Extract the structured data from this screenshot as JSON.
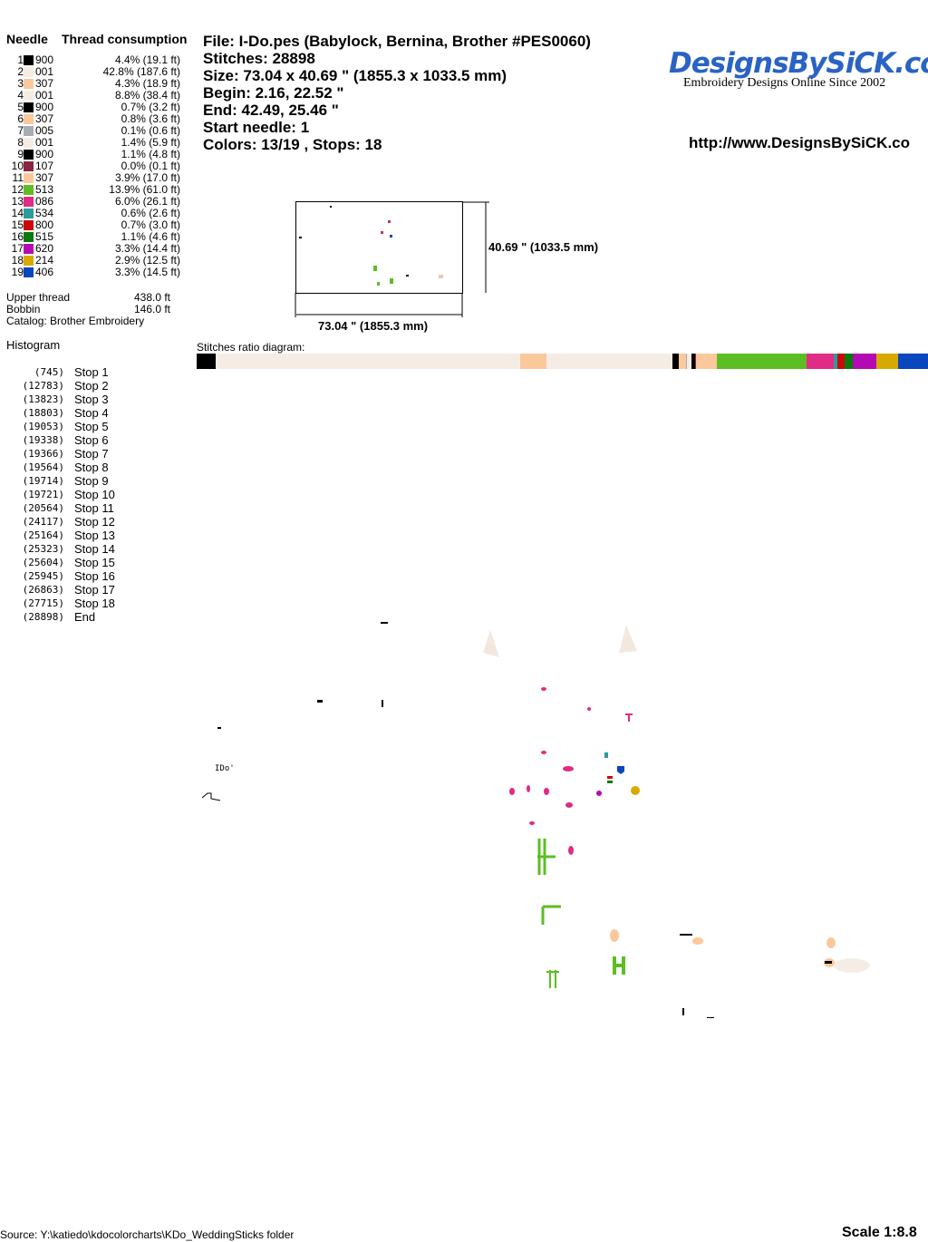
{
  "needle_table": {
    "header_needle": "Needle",
    "header_consumption": "Thread consumption",
    "rows": [
      {
        "n": "1",
        "color": "#000000",
        "code": "900",
        "consumption": "4.4% (19.1 ft)"
      },
      {
        "n": "2",
        "color": "#f5ede5",
        "code": "001",
        "consumption": "42.8% (187.6 ft)"
      },
      {
        "n": "3",
        "color": "#fbc89c",
        "code": "307",
        "consumption": "4.3% (18.9 ft)"
      },
      {
        "n": "4",
        "color": "#f5ede5",
        "code": "001",
        "consumption": "8.8% (38.4 ft)"
      },
      {
        "n": "5",
        "color": "#000000",
        "code": "900",
        "consumption": "0.7% (3.2 ft)"
      },
      {
        "n": "6",
        "color": "#fbc89c",
        "code": "307",
        "consumption": "0.8% (3.6 ft)"
      },
      {
        "n": "7",
        "color": "#a8adb4",
        "code": "005",
        "consumption": "0.1% (0.6 ft)"
      },
      {
        "n": "8",
        "color": "#f5ede5",
        "code": "001",
        "consumption": "1.4% (5.9 ft)"
      },
      {
        "n": "9",
        "color": "#000000",
        "code": "900",
        "consumption": "1.1% (4.8 ft)"
      },
      {
        "n": "10",
        "color": "#8c2444",
        "code": "107",
        "consumption": "0.0% (0.1 ft)"
      },
      {
        "n": "11",
        "color": "#fbc89c",
        "code": "307",
        "consumption": "3.9% (17.0 ft)"
      },
      {
        "n": "12",
        "color": "#5cbe23",
        "code": "513",
        "consumption": "13.9% (61.0 ft)"
      },
      {
        "n": "13",
        "color": "#e02c84",
        "code": "086",
        "consumption": "6.0% (26.1 ft)"
      },
      {
        "n": "14",
        "color": "#2a9c9c",
        "code": "534",
        "consumption": "0.6% (2.6 ft)"
      },
      {
        "n": "15",
        "color": "#c80a0a",
        "code": "800",
        "consumption": "0.7% (3.0 ft)"
      },
      {
        "n": "16",
        "color": "#0a7a0a",
        "code": "515",
        "consumption": "1.1% (4.6 ft)"
      },
      {
        "n": "17",
        "color": "#b40ab4",
        "code": "620",
        "consumption": "3.3% (14.4 ft)"
      },
      {
        "n": "18",
        "color": "#d8aa00",
        "code": "214",
        "consumption": "2.9% (12.5 ft)"
      },
      {
        "n": "19",
        "color": "#0a46be",
        "code": "406",
        "consumption": "3.3% (14.5 ft)"
      }
    ],
    "upper_thread_label": "Upper thread",
    "upper_thread_value": "438.0 ft",
    "bobbin_label": "Bobbin",
    "bobbin_value": "146.0 ft",
    "catalog": "Catalog: Brother Embroidery"
  },
  "info": {
    "file": "File: I-Do.pes  (Babylock, Bernina, Brother #PES0060)",
    "stitches": "Stitches: 28898",
    "size": "Size: 73.04 x 40.69 \" (1855.3 x 1033.5 mm)",
    "begin": "Begin: 2.16, 22.52 \"",
    "end": "End: 42.49, 25.46 \"",
    "start_needle": "Start needle: 1",
    "colors": "Colors: 13/19 , Stops: 18"
  },
  "logo": {
    "main": "DesignsBySiCK.com",
    "sub": "Embroidery Designs Online Since 2002"
  },
  "url": "http://www.DesignsBySiCK.co",
  "preview": {
    "height_label": "40.69 \" (1033.5 mm)",
    "width_label": "73.04 \" (1855.3 mm)"
  },
  "histogram": {
    "title": "Histogram",
    "stops": [
      {
        "count": "(745)",
        "label": "Stop 1"
      },
      {
        "count": "(12783)",
        "label": "Stop 2"
      },
      {
        "count": "(13823)",
        "label": "Stop 3"
      },
      {
        "count": "(18803)",
        "label": "Stop 4"
      },
      {
        "count": "(19053)",
        "label": "Stop 5"
      },
      {
        "count": "(19338)",
        "label": "Stop 6"
      },
      {
        "count": "(19366)",
        "label": "Stop 7"
      },
      {
        "count": "(19564)",
        "label": "Stop 8"
      },
      {
        "count": "(19714)",
        "label": "Stop 9"
      },
      {
        "count": "(19721)",
        "label": "Stop 10"
      },
      {
        "count": "(20564)",
        "label": "Stop 11"
      },
      {
        "count": "(24117)",
        "label": "Stop 12"
      },
      {
        "count": "(25164)",
        "label": "Stop 13"
      },
      {
        "count": "(25323)",
        "label": "Stop 14"
      },
      {
        "count": "(25604)",
        "label": "Stop 15"
      },
      {
        "count": "(25945)",
        "label": "Stop 16"
      },
      {
        "count": "(26863)",
        "label": "Stop 17"
      },
      {
        "count": "(27715)",
        "label": "Stop 18"
      },
      {
        "count": "(28898)",
        "label": "End"
      }
    ]
  },
  "ratio_title": "Stitches ratio diagram:",
  "footer": {
    "source": "Source: Y:\\katiedo\\kdocolorcharts\\KDo_WeddingSticks folder",
    "scale": "Scale 1:8.8"
  }
}
